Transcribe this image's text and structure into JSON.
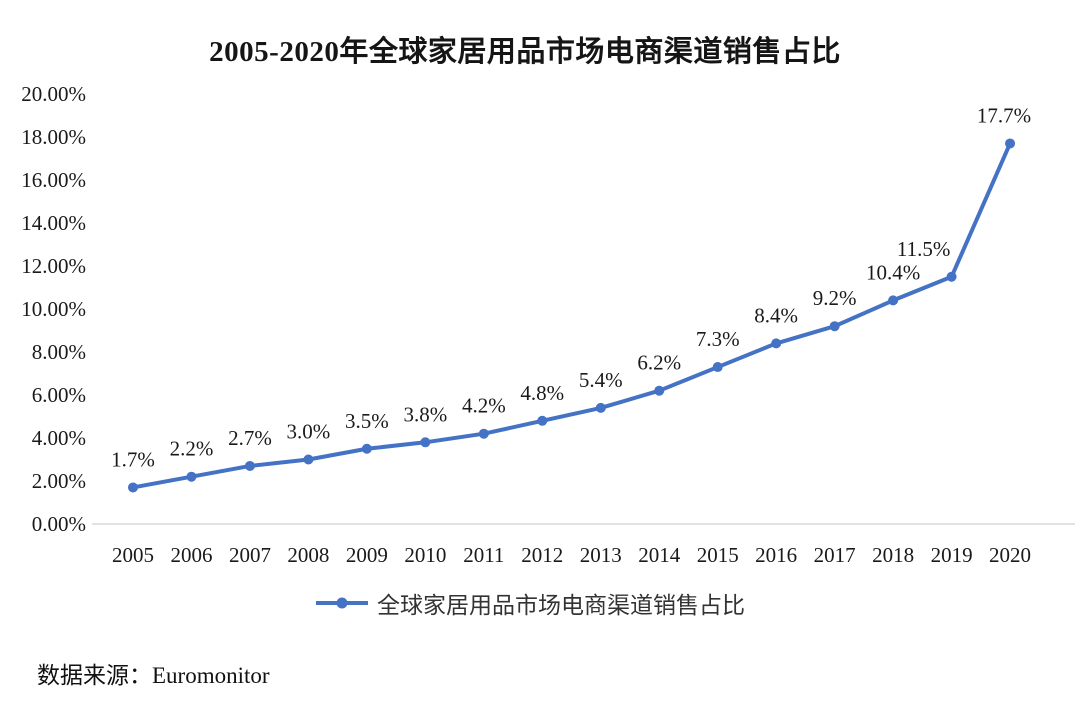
{
  "colors": {
    "series": "#4472C4",
    "axis_line": "#d9d9d9",
    "text": "#1a1a1a"
  },
  "chart_data": {
    "type": "line",
    "title": "2005-2020年全球家居用品市场电商渠道销售占比",
    "categories": [
      "2005",
      "2006",
      "2007",
      "2008",
      "2009",
      "2010",
      "2011",
      "2012",
      "2013",
      "2014",
      "2015",
      "2016",
      "2017",
      "2018",
      "2019",
      "2020"
    ],
    "series": [
      {
        "name": "全球家居用品市场电商渠道销售占比",
        "values": [
          1.7,
          2.2,
          2.7,
          3.0,
          3.5,
          3.8,
          4.2,
          4.8,
          5.4,
          6.2,
          7.3,
          8.4,
          9.2,
          10.4,
          11.5,
          17.7
        ],
        "point_labels": [
          "1.7%",
          "2.2%",
          "2.7%",
          "3.0%",
          "3.5%",
          "3.8%",
          "4.2%",
          "4.8%",
          "5.4%",
          "6.2%",
          "7.3%",
          "8.4%",
          "9.2%",
          "10.4%",
          "11.5%",
          "17.7%"
        ],
        "color": "#4472C4"
      }
    ],
    "xlabel": "",
    "ylabel": "",
    "ylim": [
      0,
      20
    ],
    "y_tick_step": 2,
    "y_tick_labels": [
      "0.00%",
      "2.00%",
      "4.00%",
      "6.00%",
      "8.00%",
      "10.00%",
      "12.00%",
      "14.00%",
      "16.00%",
      "18.00%",
      "20.00%"
    ],
    "grid": false,
    "legend_position": "bottom",
    "source_note": "数据来源：Euromonitor"
  }
}
